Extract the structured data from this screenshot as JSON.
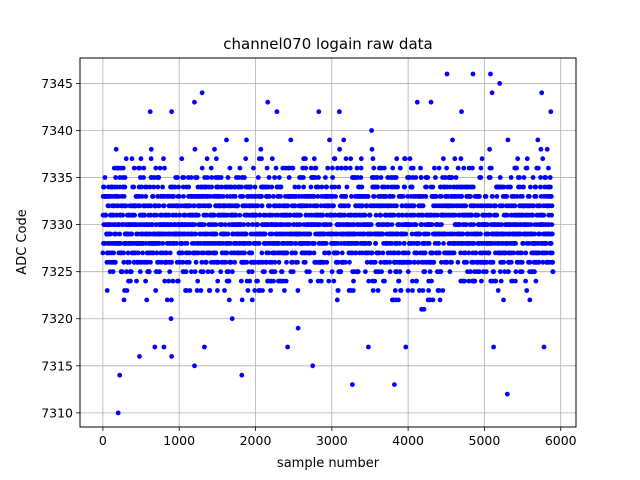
{
  "chart_data": {
    "type": "scatter",
    "title": "channel070 logain raw data",
    "xlabel": "sample number",
    "ylabel": "ADC Code",
    "xlim": [
      -300,
      6200
    ],
    "ylim": [
      7308.5,
      7347.7
    ],
    "xticks": [
      0,
      1000,
      2000,
      3000,
      4000,
      5000,
      6000
    ],
    "yticks": [
      7310,
      7315,
      7320,
      7325,
      7330,
      7335,
      7340,
      7345
    ],
    "grid": true,
    "marker_color": "#0000ff",
    "n_samples": 5900,
    "series": [
      {
        "values_summary": {
          "center": 7330,
          "dense_range": [
            7323,
            7337
          ]
        },
        "outliers": [
          {
            "x": 200,
            "y": 7310
          },
          {
            "x": 220,
            "y": 7314
          },
          {
            "x": 1200,
            "y": 7315
          },
          {
            "x": 1820,
            "y": 7314
          },
          {
            "x": 2750,
            "y": 7315
          },
          {
            "x": 3270,
            "y": 7313
          },
          {
            "x": 3820,
            "y": 7313
          },
          {
            "x": 5300,
            "y": 7312
          },
          {
            "x": 4510,
            "y": 7346
          },
          {
            "x": 4850,
            "y": 7346
          },
          {
            "x": 5080,
            "y": 7346
          },
          {
            "x": 5200,
            "y": 7345
          },
          {
            "x": 5100,
            "y": 7344
          },
          {
            "x": 1300,
            "y": 7344
          },
          {
            "x": 5750,
            "y": 7344
          },
          {
            "x": 2160,
            "y": 7343
          },
          {
            "x": 1200,
            "y": 7343
          },
          {
            "x": 4120,
            "y": 7343
          },
          {
            "x": 4300,
            "y": 7343
          },
          {
            "x": 3100,
            "y": 7342
          },
          {
            "x": 4700,
            "y": 7342
          },
          {
            "x": 620,
            "y": 7342
          },
          {
            "x": 900,
            "y": 7342
          },
          {
            "x": 2280,
            "y": 7342
          },
          {
            "x": 2830,
            "y": 7342
          },
          {
            "x": 5870,
            "y": 7342
          },
          {
            "x": 2420,
            "y": 7317
          },
          {
            "x": 3480,
            "y": 7317
          },
          {
            "x": 3970,
            "y": 7317
          },
          {
            "x": 5120,
            "y": 7317
          },
          {
            "x": 5780,
            "y": 7317
          },
          {
            "x": 480,
            "y": 7316
          },
          {
            "x": 900,
            "y": 7316
          },
          {
            "x": 1330,
            "y": 7317
          },
          {
            "x": 680,
            "y": 7317
          },
          {
            "x": 800,
            "y": 7317
          }
        ]
      }
    ]
  }
}
